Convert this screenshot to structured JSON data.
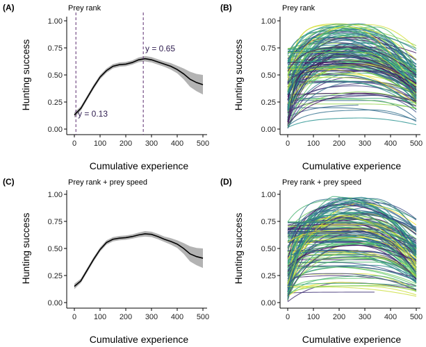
{
  "chart_data": [
    {
      "id": "A",
      "panel_label": "(A)",
      "title": "Prey rank",
      "type": "line",
      "xlabel": "Cumulative experience",
      "ylabel": "Hunting success",
      "xlim": [
        0,
        500
      ],
      "ylim": [
        0,
        1
      ],
      "xticks": [
        0,
        100,
        200,
        300,
        400,
        500
      ],
      "xtick_labels": [
        "0",
        "100",
        "200",
        "300",
        "400",
        "500"
      ],
      "yticks": [
        0,
        0.25,
        0.5,
        0.75,
        1.0
      ],
      "ytick_labels": [
        "0.00",
        "0.25",
        "0.50",
        "0.75",
        "1.00"
      ],
      "series": [
        {
          "name": "mean",
          "x": [
            0,
            25,
            50,
            75,
            100,
            125,
            150,
            175,
            200,
            225,
            250,
            275,
            300,
            325,
            350,
            375,
            400,
            425,
            450,
            475,
            500
          ],
          "y": [
            0.13,
            0.19,
            0.29,
            0.39,
            0.48,
            0.54,
            0.58,
            0.595,
            0.6,
            0.615,
            0.64,
            0.65,
            0.64,
            0.62,
            0.6,
            0.58,
            0.55,
            0.51,
            0.46,
            0.43,
            0.41
          ],
          "band": [
            0.025,
            0.02,
            0.02,
            0.02,
            0.02,
            0.02,
            0.02,
            0.02,
            0.02,
            0.02,
            0.022,
            0.025,
            0.025,
            0.025,
            0.025,
            0.03,
            0.035,
            0.05,
            0.07,
            0.08,
            0.09
          ]
        }
      ],
      "vlines": [
        6,
        268
      ],
      "annotations": [
        {
          "text": "y = 0.13",
          "x": 38,
          "y": 0.13
        },
        {
          "text": "y = 0.65",
          "x": 275,
          "y": 0.72
        }
      ],
      "grid": false
    },
    {
      "id": "B",
      "panel_label": "(B)",
      "title": "Prey rank",
      "type": "line",
      "description": "individual prediction curves",
      "xlabel": "Cumulative experience",
      "ylabel": "Hunting success",
      "xlim": [
        0,
        500
      ],
      "ylim": [
        0,
        1
      ],
      "xticks": [
        0,
        100,
        200,
        300,
        400,
        500
      ],
      "xtick_labels": [
        "0",
        "100",
        "200",
        "300",
        "400",
        "500"
      ],
      "yticks": [
        0,
        0.25,
        0.5,
        0.75,
        1.0
      ],
      "ytick_labels": [
        "0.00",
        "0.25",
        "0.50",
        "0.75",
        "1.00"
      ],
      "palette": [
        "#440154",
        "#3b528b",
        "#21908c",
        "#5ec962",
        "#fde725"
      ],
      "n_curves": 150,
      "curve_start_range": [
        0.0,
        0.75
      ],
      "curve_peak_range": [
        0.05,
        0.98
      ],
      "grid": false
    },
    {
      "id": "C",
      "panel_label": "(C)",
      "title": "Prey rank + prey speed",
      "type": "line",
      "xlabel": "Cumulative experience",
      "ylabel": "Hunting success",
      "xlim": [
        0,
        500
      ],
      "ylim": [
        0,
        1
      ],
      "xticks": [
        0,
        100,
        200,
        300,
        400,
        500
      ],
      "xtick_labels": [
        "0",
        "100",
        "200",
        "300",
        "400",
        "500"
      ],
      "yticks": [
        0,
        0.25,
        0.5,
        0.75,
        1.0
      ],
      "ytick_labels": [
        "0.00",
        "0.25",
        "0.50",
        "0.75",
        "1.00"
      ],
      "series": [
        {
          "name": "mean",
          "x": [
            0,
            25,
            50,
            75,
            100,
            125,
            150,
            175,
            200,
            225,
            250,
            275,
            300,
            325,
            350,
            375,
            400,
            425,
            450,
            475,
            500
          ],
          "y": [
            0.15,
            0.2,
            0.3,
            0.4,
            0.49,
            0.555,
            0.585,
            0.595,
            0.6,
            0.61,
            0.625,
            0.635,
            0.63,
            0.61,
            0.585,
            0.565,
            0.54,
            0.5,
            0.45,
            0.425,
            0.41
          ],
          "band": [
            0.025,
            0.02,
            0.02,
            0.02,
            0.02,
            0.02,
            0.02,
            0.02,
            0.02,
            0.02,
            0.022,
            0.025,
            0.025,
            0.025,
            0.025,
            0.03,
            0.035,
            0.05,
            0.07,
            0.08,
            0.09
          ]
        }
      ],
      "grid": false
    },
    {
      "id": "D",
      "panel_label": "(D)",
      "title": "Prey rank + prey speed",
      "type": "line",
      "description": "individual prediction curves",
      "xlabel": "Cumulative experience",
      "ylabel": "Hunting success",
      "xlim": [
        0,
        500
      ],
      "ylim": [
        0,
        1
      ],
      "xticks": [
        0,
        100,
        200,
        300,
        400,
        500
      ],
      "xtick_labels": [
        "0",
        "100",
        "200",
        "300",
        "400",
        "500"
      ],
      "yticks": [
        0,
        0.25,
        0.5,
        0.75,
        1.0
      ],
      "ytick_labels": [
        "0.00",
        "0.25",
        "0.50",
        "0.75",
        "1.00"
      ],
      "palette": [
        "#440154",
        "#3b528b",
        "#21908c",
        "#5ec962",
        "#fde725"
      ],
      "n_curves": 150,
      "curve_start_range": [
        0.0,
        0.75
      ],
      "curve_peak_range": [
        0.05,
        0.98
      ],
      "grid": false
    }
  ],
  "colors": {
    "mean_line": "#000000",
    "ci_band": "#b3b3b3",
    "vline": "#5b2c6f"
  }
}
